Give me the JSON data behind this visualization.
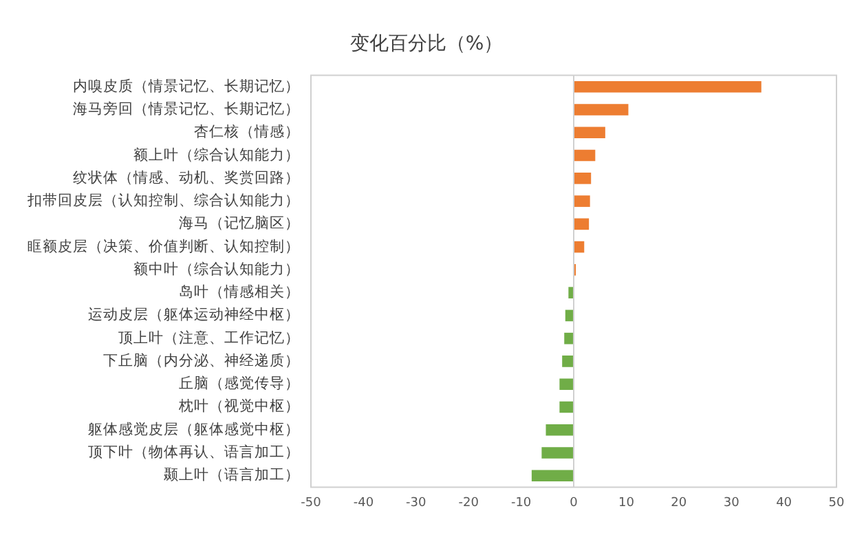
{
  "chart_data": {
    "type": "bar",
    "orientation": "horizontal",
    "title": "变化百分比（%）",
    "categories": [
      "内嗅皮质（情景记忆、长期记忆）",
      "海马旁回（情景记忆、长期记忆）",
      "杏仁核（情感）",
      "额上叶（综合认知能力）",
      "纹状体（情感、动机、奖赏回路）",
      "扣带回皮层（认知控制、综合认知能力）",
      "海马（记忆脑区）",
      "眶额皮层（决策、价值判断、认知控制）",
      "额中叶（综合认知能力）",
      "岛叶（情感相关）",
      "运动皮层（躯体运动神经中枢）",
      "顶上叶（注意、工作记忆）",
      "下丘脑（内分泌、神经递质）",
      "丘脑（感觉传导）",
      "枕叶（视觉中枢）",
      "躯体感觉皮层（躯体感觉中枢）",
      "顶下叶（物体再认、语言加工）",
      "颞上叶（语言加工）"
    ],
    "values": [
      35.7,
      10.4,
      6.0,
      4.1,
      3.3,
      3.1,
      2.9,
      2.0,
      0.4,
      -1.0,
      -1.6,
      -1.8,
      -2.2,
      -2.7,
      -2.7,
      -5.3,
      -6.1,
      -8.0
    ],
    "colors": [
      "#ed7d31",
      "#ed7d31",
      "#ed7d31",
      "#ed7d31",
      "#ed7d31",
      "#ed7d31",
      "#ed7d31",
      "#ed7d31",
      "#ed7d31",
      "#70ad47",
      "#70ad47",
      "#70ad47",
      "#70ad47",
      "#70ad47",
      "#70ad47",
      "#70ad47",
      "#70ad47",
      "#70ad47"
    ],
    "xlim": [
      -50,
      50
    ],
    "xticks": [
      -50,
      -40,
      -30,
      -20,
      -10,
      0,
      10,
      20,
      30,
      40,
      50
    ],
    "legend": false
  }
}
